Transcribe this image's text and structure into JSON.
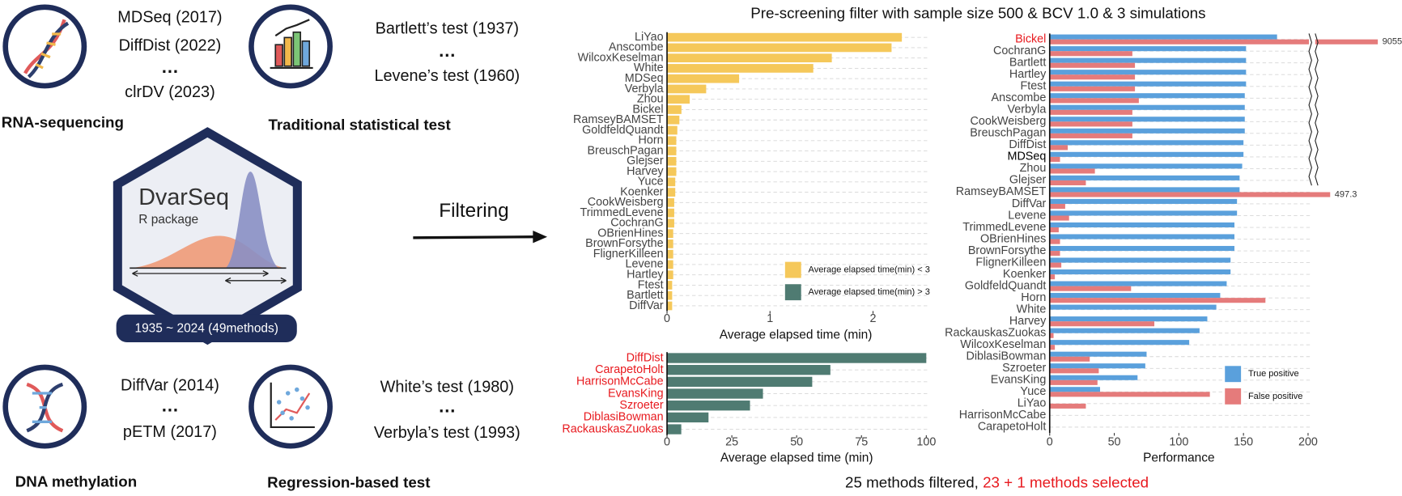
{
  "title": "Pre-screening filter with sample size 500 & BCV 1.0 & 3 simulations",
  "footer": {
    "filtered": "25 methods filtered,",
    "selected": "23 + 1 methods selected"
  },
  "diagram": {
    "rna": {
      "label": "RNA-sequencing",
      "methods": [
        "MDSeq (2017)",
        "DiffDist (2022)",
        "…",
        "clrDV (2023)"
      ]
    },
    "traditional": {
      "label": "Traditional statistical test",
      "methods": [
        "Bartlett’s test (1937)",
        "…",
        "Levene’s test (1960)"
      ]
    },
    "package": {
      "name": "DvarSeq",
      "subtitle": "R package",
      "range": "1935 ~ 2024 (49methods)"
    },
    "arrow_label": "Filtering",
    "methylation": {
      "label": "DNA methylation",
      "methods": [
        "DiffVar (2014)",
        "…",
        "pETM (2017)"
      ]
    },
    "regression": {
      "label": "Regression-based test",
      "methods": [
        "White’s test (1980)",
        "…",
        "Verbyla’s test (1993)"
      ]
    }
  },
  "chart_data": [
    {
      "type": "bar",
      "orientation": "horizontal",
      "xlabel": "Average elapsed time (min)",
      "categories": [
        "LiYao",
        "Anscombe",
        "WilcoxKeselman",
        "White",
        "MDSeq",
        "Verbyla",
        "Zhou",
        "Bickel",
        "RamseyBAMSET",
        "GoldfeldQuandt",
        "Horn",
        "BreuschPagan",
        "Glejser",
        "Harvey",
        "Yuce",
        "Koenker",
        "CookWeisberg",
        "TrimmedLevene",
        "CochranG",
        "OBrienHines",
        "BrownForsythe",
        "FlignerKilleen",
        "Levene",
        "Hartley",
        "Ftest",
        "Bartlett",
        "DiffVar"
      ],
      "series": [
        {
          "name": "Average elapsed time(min) < 3",
          "color": "#f5c85a",
          "values": [
            2.28,
            2.18,
            1.6,
            1.42,
            0.7,
            0.38,
            0.22,
            0.14,
            0.12,
            0.1,
            0.09,
            0.09,
            0.09,
            0.09,
            0.08,
            0.08,
            0.07,
            0.07,
            0.07,
            0.06,
            0.06,
            0.06,
            0.06,
            0.06,
            0.05,
            0.05,
            0.05
          ]
        }
      ],
      "xlim": [
        0,
        2.5
      ],
      "xticks": [
        0,
        1,
        2
      ],
      "grid": true,
      "legend": "bottom-right",
      "label_color": "#444444"
    },
    {
      "type": "bar",
      "orientation": "horizontal",
      "xlabel": "Average elapsed time (min)",
      "categories": [
        "DiffDist",
        "CarapetoHolt",
        "HarrisonMcCabe",
        "EvansKing",
        "Szroeter",
        "DiblasiBowman",
        "RackauskasZuokas"
      ],
      "series": [
        {
          "name": "Average elapsed time(min) > 3",
          "color": "#4f7b72",
          "values": [
            100,
            63,
            56,
            37,
            32,
            16,
            5.5
          ]
        }
      ],
      "xlim": [
        0,
        100
      ],
      "xticks": [
        0,
        25,
        50,
        75,
        100
      ],
      "grid": true,
      "label_color": "#e8191e"
    },
    {
      "type": "bar",
      "orientation": "horizontal",
      "xlabel": "Performance",
      "categories": [
        "Bickel",
        "CochranG",
        "Bartlett",
        "Hartley",
        "Ftest",
        "Anscombe",
        "Verbyla",
        "CookWeisberg",
        "BreuschPagan",
        "DiffDist",
        "MDSeq",
        "Zhou",
        "Glejser",
        "RamseyBAMSET",
        "DiffVar",
        "Levene",
        "TrimmedLevene",
        "OBrienHines",
        "BrownForsythe",
        "FlignerKilleen",
        "Koenker",
        "GoldfeldQuandt",
        "Horn",
        "White",
        "Harvey",
        "RackauskasZuokas",
        "WilcoxKeselman",
        "DiblasiBowman",
        "Szroeter",
        "EvansKing",
        "Yuce",
        "LiYao",
        "HarrisonMcCabe",
        "CarapetoHolt"
      ],
      "category_colors": [
        "#e8191e",
        "#444444",
        "#444444",
        "#444444",
        "#444444",
        "#444444",
        "#444444",
        "#444444",
        "#444444",
        "#444444",
        "#000000",
        "#444444",
        "#444444",
        "#444444",
        "#444444",
        "#444444",
        "#444444",
        "#444444",
        "#444444",
        "#444444",
        "#444444",
        "#444444",
        "#444444",
        "#444444",
        "#444444",
        "#444444",
        "#444444",
        "#444444",
        "#444444",
        "#444444",
        "#444444",
        "#444444",
        "#444444",
        "#444444"
      ],
      "series": [
        {
          "name": "True positive",
          "color": "#5aa0dc",
          "values": [
            176,
            152,
            152,
            152,
            152,
            151,
            151,
            151,
            151,
            150,
            150,
            149,
            147,
            147,
            145,
            145,
            143,
            143,
            143,
            140,
            140,
            137,
            132,
            129,
            122,
            116,
            108,
            75,
            74,
            68,
            39,
            0,
            0,
            0
          ]
        },
        {
          "name": "False positive",
          "color": "#e57b7b",
          "values": [
            9055,
            64,
            66,
            66,
            66,
            69,
            64,
            64,
            64,
            14,
            8,
            35,
            28,
            497.3,
            12,
            15,
            7,
            8,
            8,
            9,
            4,
            63,
            167,
            0,
            81,
            3,
            4,
            31,
            38,
            37,
            124,
            28,
            0,
            0
          ]
        }
      ],
      "xlim": [
        0,
        200
      ],
      "xticks": [
        0,
        50,
        100,
        150,
        200
      ],
      "grid": true,
      "axis_break": true,
      "legend": "bottom-right",
      "label_color": "#444444"
    }
  ]
}
